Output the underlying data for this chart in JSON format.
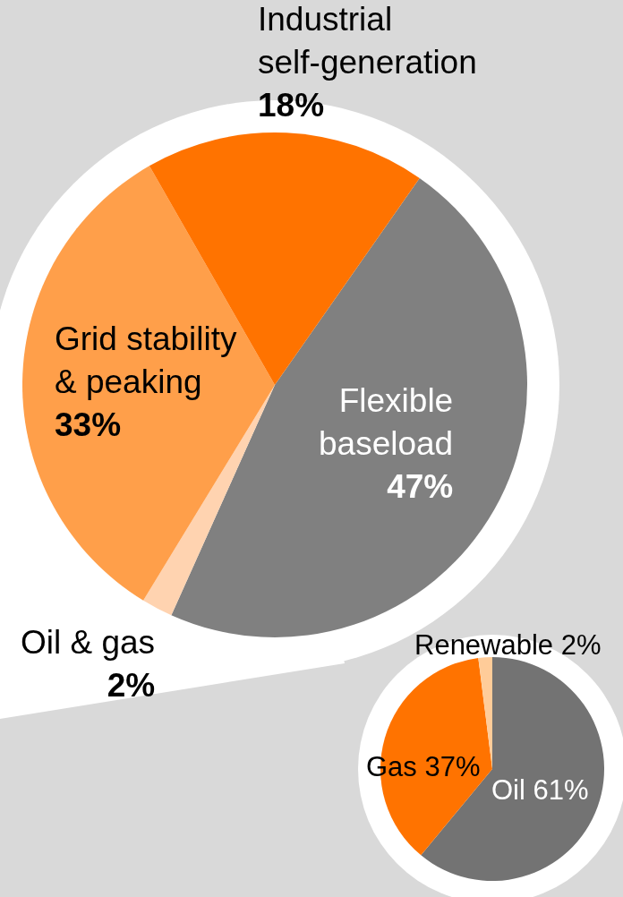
{
  "chart_data": [
    {
      "type": "pie",
      "categories": [
        "Flexible baseload",
        "Oil & gas",
        "Grid stability & peaking",
        "Industrial self-generation"
      ],
      "values": [
        47,
        2,
        33,
        18
      ],
      "colors": [
        "#808080",
        "#ffd3b0",
        "#ff9f4a",
        "#ff7300"
      ],
      "value_labels": [
        "47%",
        "2%",
        "33%",
        "18%"
      ]
    },
    {
      "type": "pie",
      "categories": [
        "Oil",
        "Gas",
        "Renewable"
      ],
      "values": [
        61,
        37,
        2
      ],
      "colors": [
        "#737373",
        "#ff7300",
        "#ffcc99"
      ],
      "value_labels": [
        "61%",
        "37%",
        "2%"
      ]
    }
  ]
}
